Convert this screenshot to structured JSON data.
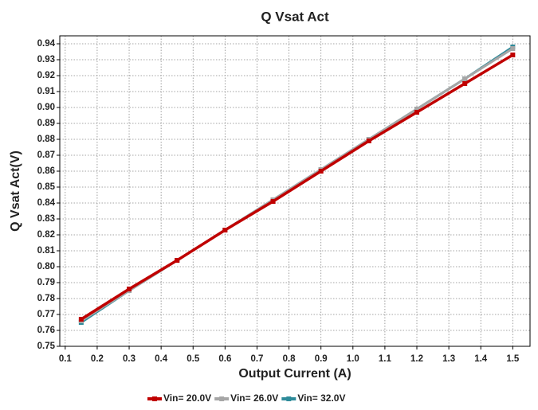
{
  "chart_data": {
    "type": "line",
    "title": "Q Vsat Act",
    "x_label": "Output Current (A)",
    "y_label": "Q Vsat Act(V)",
    "x": [
      0.15,
      0.3,
      0.45,
      0.6,
      0.75,
      0.9,
      1.05,
      1.2,
      1.35,
      1.5
    ],
    "series": [
      {
        "name": "Vin= 20.0V",
        "color": "#c00000",
        "values": [
          0.767,
          0.786,
          0.804,
          0.823,
          0.841,
          0.86,
          0.879,
          0.897,
          0.915,
          0.933
        ]
      },
      {
        "name": "Vin= 26.0V",
        "color": "#a6a6a6",
        "values": [
          0.766,
          0.785,
          0.804,
          0.823,
          0.842,
          0.861,
          0.88,
          0.899,
          0.918,
          0.937
        ]
      },
      {
        "name": "Vin= 32.0V",
        "color": "#2e8b9a",
        "values": [
          0.765,
          0.785,
          0.804,
          0.823,
          0.842,
          0.861,
          0.88,
          0.899,
          0.918,
          0.938
        ]
      }
    ],
    "xlim": [
      0.083,
      1.554
    ],
    "xticks": [
      0.1,
      0.2,
      0.3,
      0.4,
      0.5,
      0.6,
      0.7,
      0.8,
      0.9,
      {
        "value": 1,
        "label": "1.0"
      },
      1.1,
      1.2,
      1.3,
      1.4,
      1.5
    ],
    "ylim": [
      0.75,
      0.945
    ],
    "yticks": [
      0.75,
      0.76,
      0.77,
      0.78,
      0.79,
      {
        "value": 0.8,
        "label": "0.80"
      },
      0.81,
      0.82,
      0.83,
      0.84,
      0.85,
      0.86,
      0.87,
      0.88,
      0.89,
      {
        "value": 0.9,
        "label": "0.90"
      },
      0.91,
      0.92,
      0.93,
      0.94
    ],
    "grid": true,
    "legend": "bottom"
  }
}
